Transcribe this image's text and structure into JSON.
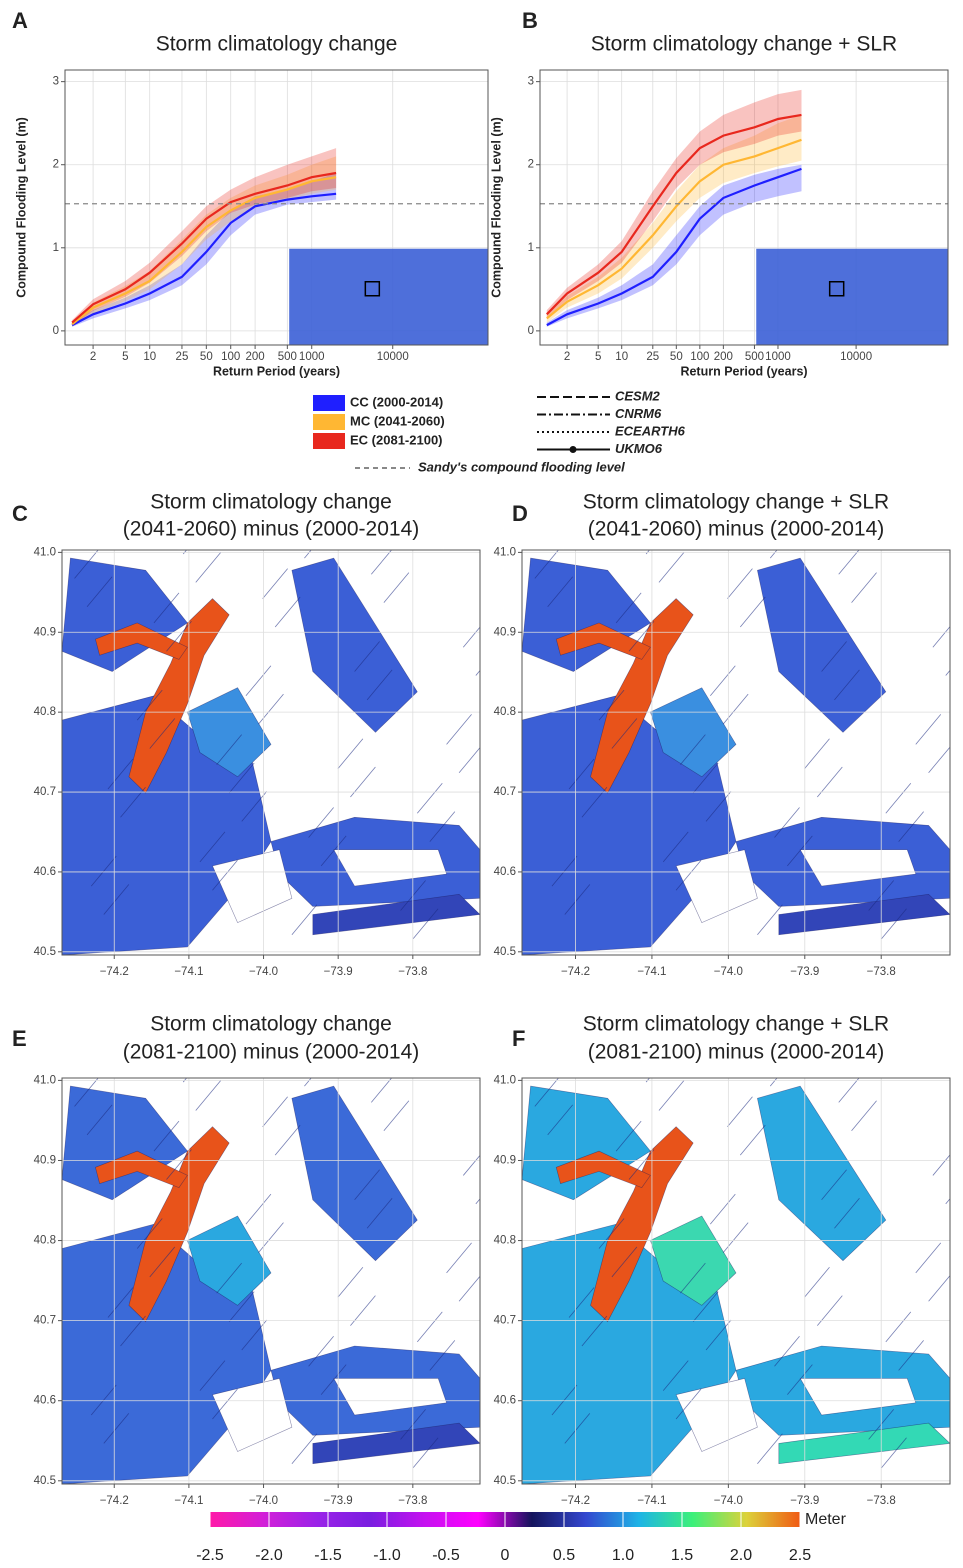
{
  "chart_data": [
    {
      "type": "line",
      "panel": "A",
      "title": "Storm climatology change",
      "xlabel": "Return Period (years)",
      "ylabel": "Compound Flooding Level (m)",
      "xscale": "log",
      "xlim": [
        0.9,
        150000
      ],
      "xticks": [
        2,
        5,
        10,
        25,
        50,
        100,
        200,
        500,
        1000,
        10000
      ],
      "ylim": [
        -0.17,
        3.14
      ],
      "yticks": [
        0,
        1,
        2,
        3
      ],
      "grid": true,
      "hline": 1.53,
      "x": [
        1.1,
        2,
        5,
        10,
        25,
        50,
        100,
        200,
        500,
        1000,
        2000
      ],
      "series": [
        {
          "name": "CC (2000-2014)",
          "color": "#1f1fff",
          "values": [
            0.07,
            0.2,
            0.33,
            0.45,
            0.65,
            0.95,
            1.3,
            1.5,
            1.58,
            1.62,
            1.65
          ],
          "lower": [
            0.05,
            0.15,
            0.27,
            0.37,
            0.55,
            0.8,
            1.15,
            1.4,
            1.52,
            1.55,
            1.58
          ],
          "upper": [
            0.1,
            0.25,
            0.4,
            0.55,
            0.8,
            1.15,
            1.45,
            1.62,
            1.7,
            1.8,
            1.9
          ]
        },
        {
          "name": "MC (2041-2060)",
          "color": "#ffb733",
          "values": [
            0.08,
            0.28,
            0.45,
            0.6,
            0.95,
            1.25,
            1.45,
            1.6,
            1.7,
            1.8,
            1.85
          ],
          "lower": [
            0.05,
            0.2,
            0.36,
            0.5,
            0.8,
            1.1,
            1.32,
            1.48,
            1.58,
            1.65,
            1.7
          ],
          "upper": [
            0.11,
            0.34,
            0.54,
            0.72,
            1.1,
            1.4,
            1.6,
            1.75,
            1.88,
            2.0,
            2.1
          ]
        },
        {
          "name": "EC (2081-2100)",
          "color": "#e8281e",
          "values": [
            0.1,
            0.32,
            0.5,
            0.7,
            1.05,
            1.35,
            1.55,
            1.65,
            1.75,
            1.85,
            1.9
          ],
          "lower": [
            0.06,
            0.24,
            0.41,
            0.58,
            0.9,
            1.2,
            1.42,
            1.52,
            1.6,
            1.68,
            1.72
          ],
          "upper": [
            0.13,
            0.38,
            0.6,
            0.82,
            1.2,
            1.5,
            1.7,
            1.85,
            2.0,
            2.1,
            2.2
          ]
        }
      ]
    },
    {
      "type": "line",
      "panel": "B",
      "title": "Storm climatology change + SLR",
      "xlabel": "Return Period (years)",
      "ylabel": "Compound Flooding Level (m)",
      "xscale": "log",
      "xlim": [
        0.9,
        150000
      ],
      "xticks": [
        2,
        5,
        10,
        25,
        50,
        100,
        200,
        500,
        1000,
        10000
      ],
      "ylim": [
        -0.17,
        3.14
      ],
      "yticks": [
        0,
        1,
        2,
        3
      ],
      "grid": true,
      "hline": 1.53,
      "x": [
        1.1,
        2,
        5,
        10,
        25,
        50,
        100,
        200,
        500,
        1000,
        2000
      ],
      "series": [
        {
          "name": "CC (2000-2014)",
          "color": "#1f1fff",
          "values": [
            0.07,
            0.2,
            0.33,
            0.45,
            0.65,
            0.95,
            1.35,
            1.6,
            1.75,
            1.85,
            1.95
          ],
          "lower": [
            0.05,
            0.15,
            0.27,
            0.37,
            0.55,
            0.8,
            1.15,
            1.4,
            1.55,
            1.62,
            1.68
          ],
          "upper": [
            0.1,
            0.25,
            0.4,
            0.55,
            0.8,
            1.15,
            1.5,
            1.75,
            1.88,
            1.95,
            2.0
          ]
        },
        {
          "name": "MC (2041-2060)",
          "color": "#ffb733",
          "values": [
            0.15,
            0.35,
            0.55,
            0.75,
            1.15,
            1.5,
            1.8,
            2.0,
            2.1,
            2.2,
            2.3
          ],
          "lower": [
            0.1,
            0.28,
            0.45,
            0.63,
            1.0,
            1.32,
            1.6,
            1.78,
            1.9,
            1.98,
            2.05
          ],
          "upper": [
            0.2,
            0.42,
            0.65,
            0.88,
            1.3,
            1.68,
            2.0,
            2.2,
            2.35,
            2.5,
            2.6
          ]
        },
        {
          "name": "EC (2081-2100)",
          "color": "#e8281e",
          "values": [
            0.2,
            0.45,
            0.7,
            0.95,
            1.5,
            1.9,
            2.2,
            2.35,
            2.45,
            2.55,
            2.6
          ],
          "lower": [
            0.15,
            0.37,
            0.6,
            0.82,
            1.32,
            1.72,
            2.0,
            2.15,
            2.25,
            2.35,
            2.4
          ],
          "upper": [
            0.25,
            0.52,
            0.8,
            1.08,
            1.68,
            2.08,
            2.4,
            2.6,
            2.75,
            2.85,
            2.9
          ]
        }
      ]
    },
    {
      "type": "map",
      "panel": "C",
      "title": "Storm climatology change",
      "subtitle": "(2041-2060) minus (2000-2014)",
      "xlim": [
        -74.27,
        -73.71
      ],
      "xticks": [
        {
          "value": -74.2,
          "label": "−74.2"
        },
        {
          "value": -74.1,
          "label": "−74.1"
        },
        {
          "value": -74.0,
          "label": "−74.0"
        },
        {
          "value": -73.9,
          "label": "−73.9"
        },
        {
          "value": -73.8,
          "label": "−73.8"
        }
      ],
      "ylim": [
        40.496,
        41.003
      ],
      "yticks": [
        40.5,
        40.6,
        40.7,
        40.8,
        40.9,
        {
          "value": 41.0,
          "label": "41.0"
        }
      ],
      "grid": true
    },
    {
      "type": "map",
      "panel": "D",
      "title": "Storm climatology change + SLR",
      "subtitle": "(2041-2060) minus (2000-2014)",
      "xlim": [
        -74.27,
        -73.71
      ],
      "xticks": [
        {
          "value": -74.2,
          "label": "−74.2"
        },
        {
          "value": -74.1,
          "label": "−74.1"
        },
        {
          "value": -74.0,
          "label": "−74.0"
        },
        {
          "value": -73.9,
          "label": "−73.9"
        },
        {
          "value": -73.8,
          "label": "−73.8"
        }
      ],
      "ylim": [
        40.496,
        41.003
      ],
      "yticks": [
        40.5,
        40.6,
        40.7,
        40.8,
        40.9,
        {
          "value": 41.0,
          "label": "41.0"
        }
      ],
      "grid": true
    },
    {
      "type": "map",
      "panel": "E",
      "title": "Storm climatology change",
      "subtitle": "(2081-2100) minus (2000-2014)",
      "xlim": [
        -74.27,
        -73.71
      ],
      "xticks": [
        {
          "value": -74.2,
          "label": "−74.2"
        },
        {
          "value": -74.1,
          "label": "−74.1"
        },
        {
          "value": -74.0,
          "label": "−74.0"
        },
        {
          "value": -73.9,
          "label": "−73.9"
        },
        {
          "value": -73.8,
          "label": "−73.8"
        }
      ],
      "ylim": [
        40.496,
        41.003
      ],
      "yticks": [
        40.5,
        40.6,
        40.7,
        40.8,
        40.9,
        {
          "value": 41.0,
          "label": "41.0"
        }
      ],
      "grid": true
    },
    {
      "type": "map",
      "panel": "F",
      "title": "Storm climatology change + SLR",
      "subtitle": "(2081-2100) minus (2000-2014)",
      "xlim": [
        -74.27,
        -73.71
      ],
      "xticks": [
        {
          "value": -74.2,
          "label": "−74.2"
        },
        {
          "value": -74.1,
          "label": "−74.1"
        },
        {
          "value": -74.0,
          "label": "−74.0"
        },
        {
          "value": -73.9,
          "label": "−73.9"
        },
        {
          "value": -73.8,
          "label": "−73.8"
        }
      ],
      "ylim": [
        40.496,
        41.003
      ],
      "yticks": [
        40.5,
        40.6,
        40.7,
        40.8,
        40.9,
        {
          "value": 41.0,
          "label": "41.0"
        }
      ],
      "grid": true
    }
  ],
  "legend": {
    "line_styles": [
      {
        "name": "CESM2",
        "dash": "9,4"
      },
      {
        "name": "CNRM6",
        "dash": "9,3,2,3"
      },
      {
        "name": "ECEARTH6",
        "dash": "2,3"
      },
      {
        "name": "UKMO6",
        "dash": "none"
      }
    ],
    "reference": "Sandy's compound flooding level"
  },
  "colorbar": {
    "label": "Meter",
    "lim": [
      -2.5,
      2.5
    ],
    "ticks": [
      -2.5,
      {
        "value": -2.0,
        "label": "-2.0"
      },
      -1.5,
      {
        "value": -1.0,
        "label": "-1.0"
      },
      -0.5,
      0,
      0.5,
      {
        "value": 1.0,
        "label": "1.0"
      },
      1.5,
      {
        "value": 2.0,
        "label": "2.0"
      },
      2.5
    ],
    "colors": [
      "#ff1aa8",
      "#d21fd8",
      "#9a22e8",
      "#7a1ee0",
      "#c512f0",
      "#ff00ff",
      "#14145c",
      "#3347cf",
      "#1eb4e6",
      "#3cf07a",
      "#dcd23a",
      "#f05a14"
    ]
  }
}
